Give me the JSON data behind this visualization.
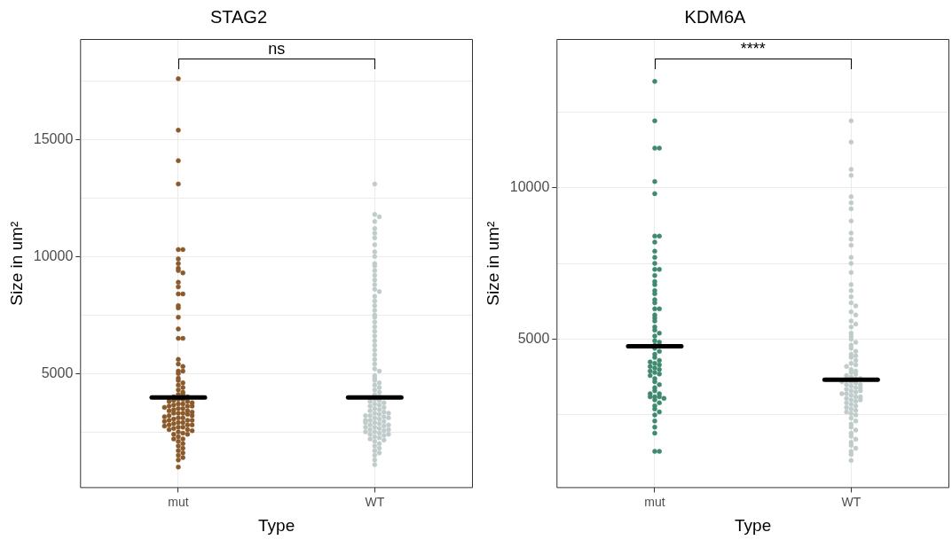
{
  "chart_data": [
    {
      "type": "scatter",
      "title": "STAG2",
      "xlabel": "Type",
      "ylabel": "Size in um²",
      "categories": [
        "mut",
        "WT"
      ],
      "ylim": [
        100,
        19300
      ],
      "yticks": [
        {
          "value": 2500,
          "label": null
        },
        5000,
        {
          "value": 7500,
          "label": null
        },
        10000,
        {
          "value": 12500,
          "label": null
        },
        15000,
        {
          "value": 17500,
          "label": null
        }
      ],
      "grid": true,
      "legend": false,
      "marker": "circle",
      "annotations": [
        "ns"
      ],
      "series": [
        {
          "x": [
            "mut",
            "mut",
            "mut",
            "mut",
            "mut",
            "mut",
            "mut",
            "mut",
            "mut",
            "mut",
            "mut",
            "mut",
            "mut",
            "mut",
            "mut",
            "mut",
            "mut",
            "mut",
            "mut",
            "mut",
            "mut",
            "mut",
            "mut",
            "mut",
            "mut",
            "mut",
            "mut",
            "mut",
            "mut",
            "mut",
            "mut",
            "mut",
            "mut",
            "mut",
            "mut",
            "mut",
            "mut",
            "mut",
            "mut",
            "mut",
            "mut",
            "mut",
            "mut",
            "mut",
            "mut",
            "mut",
            "mut",
            "mut",
            "mut",
            "mut",
            "mut",
            "mut",
            "mut",
            "mut",
            "mut",
            "mut",
            "mut",
            "mut",
            "mut",
            "mut",
            "mut",
            "mut",
            "mut",
            "mut",
            "mut",
            "mut",
            "mut",
            "mut",
            "mut",
            "mut",
            "mut",
            "mut",
            "mut",
            "mut",
            "mut",
            "mut",
            "mut",
            "mut",
            "mut",
            "mut",
            "mut",
            "mut",
            "mut",
            "mut",
            "mut",
            "mut",
            "mut",
            "mut",
            "mut",
            "mut",
            "mut",
            "mut",
            "mut",
            "mut",
            "mut",
            "mut",
            "mut",
            "mut",
            "mut",
            "mut",
            "mut",
            "mut"
          ],
          "color": "#8b5a2b",
          "values": [
            17600,
            15400,
            14100,
            13100,
            10300,
            10300,
            9900,
            9700,
            9500,
            9400,
            9300,
            8900,
            8700,
            8400,
            8400,
            7900,
            7800,
            7400,
            6900,
            6500,
            6500,
            5600,
            5400,
            5300,
            5100,
            5100,
            5000,
            4800,
            4700,
            4600,
            4500,
            4400,
            4300,
            4200,
            4100,
            4100,
            4000,
            4000,
            3950,
            3900,
            3900,
            3850,
            3800,
            3800,
            3750,
            3700,
            3700,
            3650,
            3600,
            3600,
            3600,
            3550,
            3500,
            3500,
            3450,
            3400,
            3400,
            3350,
            3300,
            3300,
            3300,
            3250,
            3200,
            3200,
            3150,
            3100,
            3100,
            3050,
            3000,
            3000,
            3000,
            2950,
            2900,
            2900,
            2850,
            2800,
            2800,
            2800,
            2750,
            2700,
            2700,
            2650,
            2600,
            2600,
            2550,
            2500,
            2450,
            2400,
            2400,
            2300,
            2200,
            2200,
            2100,
            2000,
            1900,
            1800,
            1700,
            1600,
            1500,
            1400,
            1300,
            1000
          ]
        },
        {
          "x": [
            "WT",
            "WT",
            "WT",
            "WT",
            "WT",
            "WT",
            "WT",
            "WT",
            "WT",
            "WT",
            "WT",
            "WT",
            "WT",
            "WT",
            "WT",
            "WT",
            "WT",
            "WT",
            "WT",
            "WT",
            "WT",
            "WT",
            "WT",
            "WT",
            "WT",
            "WT",
            "WT",
            "WT",
            "WT",
            "WT",
            "WT",
            "WT",
            "WT",
            "WT",
            "WT",
            "WT",
            "WT",
            "WT",
            "WT",
            "WT",
            "WT",
            "WT",
            "WT",
            "WT",
            "WT",
            "WT",
            "WT",
            "WT",
            "WT",
            "WT",
            "WT",
            "WT",
            "WT",
            "WT",
            "WT",
            "WT",
            "WT",
            "WT",
            "WT",
            "WT",
            "WT",
            "WT",
            "WT",
            "WT",
            "WT",
            "WT",
            "WT",
            "WT",
            "WT",
            "WT",
            "WT",
            "WT",
            "WT",
            "WT",
            "WT",
            "WT",
            "WT",
            "WT",
            "WT",
            "WT",
            "WT",
            "WT",
            "WT",
            "WT",
            "WT",
            "WT",
            "WT",
            "WT",
            "WT",
            "WT",
            "WT",
            "WT",
            "WT",
            "WT",
            "WT",
            "WT",
            "WT",
            "WT",
            "WT",
            "WT",
            "WT",
            "WT"
          ],
          "color": "#c0cccb",
          "values": [
            13100,
            11800,
            11700,
            11500,
            11200,
            11000,
            10800,
            10500,
            10200,
            10000,
            9700,
            9600,
            9400,
            9200,
            9000,
            8800,
            8600,
            8500,
            8300,
            8100,
            7900,
            7700,
            7500,
            7400,
            7200,
            7000,
            6800,
            6600,
            6400,
            6200,
            6000,
            5800,
            5600,
            5400,
            5200,
            5100,
            4900,
            4800,
            4700,
            4600,
            4500,
            4400,
            4300,
            4200,
            4100,
            4000,
            3950,
            3900,
            3850,
            3800,
            3750,
            3700,
            3650,
            3600,
            3550,
            3500,
            3450,
            3400,
            3350,
            3300,
            3250,
            3200,
            3150,
            3100,
            3050,
            3000,
            2950,
            2900,
            2850,
            2800,
            2750,
            2700,
            2650,
            2600,
            2550,
            2500,
            2450,
            2400,
            2350,
            2300,
            2250,
            2200,
            2150,
            2100,
            2000,
            1900,
            1800,
            1700,
            1600,
            1500,
            1300,
            1100,
            3000,
            2900,
            2800,
            2700,
            2600,
            2500,
            3100,
            3200,
            3300,
            2400
          ]
        },
        {
          "type": "box",
          "color": "#000000",
          "boxes": [
            {
              "low": 3970,
              "q1": 3970,
              "median": 3970,
              "q3": 3970,
              "high": 3970
            },
            {
              "low": 3970,
              "q1": 3970,
              "median": 3970,
              "q3": 3970,
              "high": 3970
            }
          ]
        }
      ]
    },
    {
      "type": "scatter",
      "title": "KDM6A",
      "xlabel": "Type",
      "ylabel": "Size in um²",
      "categories": [
        "mut",
        "WT"
      ],
      "ylim": [
        90,
        14900
      ],
      "yticks": [
        {
          "value": 2500,
          "label": null
        },
        5000,
        {
          "value": 7500,
          "label": null
        },
        10000,
        {
          "value": 12500,
          "label": null
        }
      ],
      "grid": true,
      "legend": false,
      "marker": "circle",
      "annotations": [
        "****"
      ],
      "series": [
        {
          "x": [
            "mut",
            "mut",
            "mut",
            "mut",
            "mut",
            "mut",
            "mut",
            "mut",
            "mut",
            "mut",
            "mut",
            "mut",
            "mut",
            "mut",
            "mut",
            "mut",
            "mut",
            "mut",
            "mut",
            "mut",
            "mut",
            "mut",
            "mut",
            "mut",
            "mut",
            "mut",
            "mut",
            "mut",
            "mut",
            "mut",
            "mut",
            "mut",
            "mut",
            "mut",
            "mut",
            "mut",
            "mut",
            "mut",
            "mut",
            "mut",
            "mut",
            "mut",
            "mut",
            "mut",
            "mut",
            "mut",
            "mut",
            "mut",
            "mut",
            "mut",
            "mut",
            "mut",
            "mut",
            "mut",
            "mut",
            "mut",
            "mut",
            "mut",
            "mut",
            "mut",
            "mut",
            "mut",
            "mut",
            "mut",
            "mut",
            "mut",
            "mut",
            "mut",
            "mut",
            "mut"
          ],
          "color": "#3f8a6e",
          "values": [
            13500,
            12200,
            11300,
            11300,
            10200,
            9800,
            8400,
            8400,
            8200,
            7900,
            7700,
            7500,
            7300,
            7300,
            7100,
            6900,
            6800,
            6600,
            6500,
            6300,
            6200,
            6000,
            6000,
            5800,
            5700,
            5600,
            5400,
            5300,
            5200,
            5100,
            4950,
            4900,
            4800,
            4700,
            4600,
            4500,
            4400,
            4300,
            4250,
            4200,
            4150,
            4100,
            4050,
            4000,
            3950,
            3900,
            3850,
            3800,
            3700,
            3600,
            3500,
            3400,
            3300,
            3200,
            3200,
            3100,
            3100,
            3100,
            3050,
            3000,
            2900,
            2800,
            2700,
            2600,
            2500,
            2300,
            2100,
            1900,
            1300,
            1300
          ]
        },
        {
          "x": [
            "WT",
            "WT",
            "WT",
            "WT",
            "WT",
            "WT",
            "WT",
            "WT",
            "WT",
            "WT",
            "WT",
            "WT",
            "WT",
            "WT",
            "WT",
            "WT",
            "WT",
            "WT",
            "WT",
            "WT",
            "WT",
            "WT",
            "WT",
            "WT",
            "WT",
            "WT",
            "WT",
            "WT",
            "WT",
            "WT",
            "WT",
            "WT",
            "WT",
            "WT",
            "WT",
            "WT",
            "WT",
            "WT",
            "WT",
            "WT",
            "WT",
            "WT",
            "WT",
            "WT",
            "WT",
            "WT",
            "WT",
            "WT",
            "WT",
            "WT",
            "WT",
            "WT",
            "WT",
            "WT",
            "WT",
            "WT",
            "WT",
            "WT",
            "WT",
            "WT",
            "WT",
            "WT",
            "WT",
            "WT",
            "WT",
            "WT",
            "WT",
            "WT",
            "WT",
            "WT",
            "WT",
            "WT",
            "WT",
            "WT",
            "WT",
            "WT",
            "WT",
            "WT",
            "WT",
            "WT",
            "WT",
            "WT",
            "WT",
            "WT",
            "WT",
            "WT",
            "WT",
            "WT",
            "WT",
            "WT",
            "WT"
          ],
          "color": "#c0cccb",
          "values": [
            12200,
            11500,
            10600,
            10400,
            9700,
            9500,
            9300,
            8900,
            8500,
            8300,
            8100,
            7700,
            7500,
            7200,
            6800,
            6600,
            6400,
            6200,
            6100,
            5900,
            5800,
            5600,
            5500,
            5400,
            5200,
            5100,
            5000,
            4900,
            4800,
            4700,
            4600,
            4500,
            4450,
            4400,
            4300,
            4200,
            4150,
            4100,
            4000,
            3950,
            3900,
            3850,
            3800,
            3750,
            3700,
            3650,
            3600,
            3550,
            3500,
            3450,
            3400,
            3350,
            3300,
            3250,
            3200,
            3150,
            3100,
            3050,
            3000,
            2950,
            2900,
            2850,
            2800,
            2750,
            2700,
            2650,
            2600,
            2550,
            2500,
            2400,
            2300,
            2200,
            2100,
            2000,
            1900,
            1800,
            1700,
            1600,
            1500,
            1400,
            1300,
            1200,
            1000,
            3500,
            3400,
            3300,
            3200,
            3100,
            3000,
            3600,
            3700
          ]
        },
        {
          "type": "box",
          "color": "#000000",
          "boxes": [
            {
              "low": 4770,
              "q1": 4770,
              "median": 4770,
              "q3": 4770,
              "high": 4770
            },
            {
              "low": 3660,
              "q1": 3660,
              "median": 3660,
              "q3": 3660,
              "high": 3660
            }
          ]
        }
      ]
    }
  ]
}
